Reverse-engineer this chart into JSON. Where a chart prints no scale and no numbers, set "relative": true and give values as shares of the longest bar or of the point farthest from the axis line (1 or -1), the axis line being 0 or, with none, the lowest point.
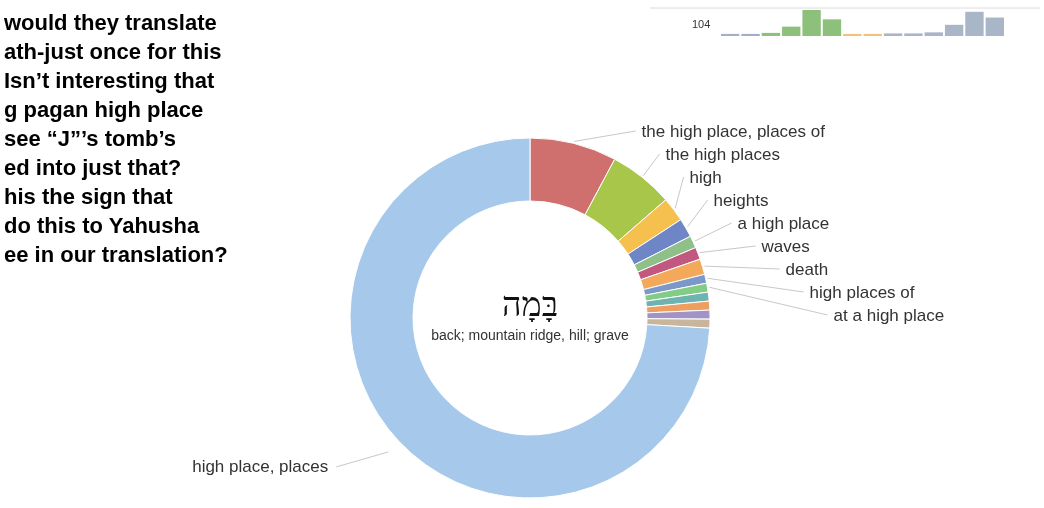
{
  "chart_data": [
    {
      "type": "donut",
      "title": "בָּמָה",
      "subtitle": "back; mountain ridge, hill; grave",
      "categories": [
        "the high place, places of",
        "the high places",
        "high",
        "heights",
        "a high place",
        "waves",
        "death",
        "high places of",
        "at a high place",
        null,
        null,
        null,
        null,
        "high place, places"
      ],
      "values": [
        7.8,
        5.8,
        2.2,
        1.7,
        1.1,
        1.1,
        1.4,
        0.8,
        0.8,
        0.8,
        0.8,
        0.8,
        0.8,
        74.1
      ],
      "colors": [
        "#d0706e",
        "#a8c64a",
        "#f5c04e",
        "#6f86c6",
        "#8fc08a",
        "#c2577f",
        "#f4a95a",
        "#7c98c8",
        "#82cc86",
        "#6fb3b0",
        "#ee9f5f",
        "#a293c6",
        "#c8b59b",
        "#a6c8ea"
      ],
      "annotations": [
        "would they translate\nath-just once for this\nIsn’t interesting that\ng pagan high place\nsee “J”’s tomb’s\ned into just that?\nhis the sign that\ndo this to Yahusha\nee in our translation?"
      ]
    },
    {
      "type": "bar",
      "relative": true,
      "categories": [
        null,
        null,
        null,
        null,
        null,
        null,
        null,
        null,
        null,
        null,
        null,
        null,
        null,
        null
      ],
      "values": [
        0.08,
        0.08,
        0.12,
        0.36,
        1,
        0.64,
        0.08,
        0.08,
        0.1,
        0.1,
        0.14,
        0.43,
        0.93,
        0.71
      ],
      "colors": [
        "#9fb0c8",
        "#9fb0c8",
        "#8dc07a",
        "#8dc07a",
        "#8dc07a",
        "#8dc07a",
        "#f2c27a",
        "#f2c27a",
        "#a8b6c8",
        "#a8b6c8",
        "#a8b6c8",
        "#a8b6c8",
        "#a8b6c8",
        "#a8b6c8"
      ],
      "annotations": [
        "104"
      ]
    }
  ]
}
